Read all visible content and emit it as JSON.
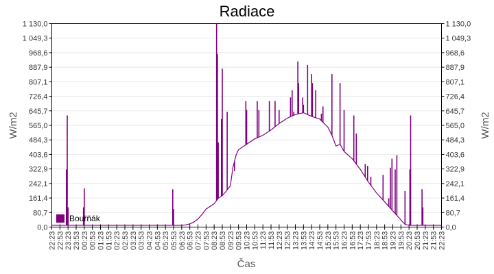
{
  "chart_data": {
    "type": "line",
    "title": "Radiace",
    "xlabel": "Čas",
    "ylabel": "W/m2",
    "ylabel_right": "W/m2",
    "ylim": [
      0,
      1130
    ],
    "y_ticks": [
      "0,0",
      "80,7",
      "161,4",
      "242,1",
      "322,9",
      "403,6",
      "484,3",
      "565,0",
      "645,7",
      "726,4",
      "807,1",
      "887,9",
      "968,6",
      "1 049,3",
      "1 130,0"
    ],
    "x_ticks": [
      "22:23",
      "22:53",
      "23:23",
      "23:53",
      "00:23",
      "00:53",
      "01:23",
      "01:53",
      "02:23",
      "02:53",
      "03:23",
      "03:53",
      "04:23",
      "04:53",
      "05:23",
      "05:53",
      "06:23",
      "06:53",
      "07:23",
      "07:53",
      "08:23",
      "08:53",
      "09:23",
      "09:53",
      "10:23",
      "10:53",
      "11:23",
      "11:53",
      "12:23",
      "12:53",
      "13:23",
      "13:53",
      "14:23",
      "14:53",
      "15:23",
      "15:53",
      "16:23",
      "16:53",
      "17:23",
      "17:53",
      "18:23",
      "18:53",
      "19:23",
      "19:53",
      "20:23",
      "20:53",
      "21:23",
      "21:53",
      "22:23"
    ],
    "grid": true,
    "legend_position": "bottom-left-inside",
    "series": [
      {
        "name": "Bouřňák",
        "color": "#800080",
        "baseline_points": [
          [
            0,
            10
          ],
          [
            2,
            10
          ],
          [
            4,
            10
          ],
          [
            8,
            10
          ],
          [
            14,
            10
          ],
          [
            15,
            10
          ],
          [
            16,
            10
          ],
          [
            16.5,
            12
          ],
          [
            17,
            18
          ],
          [
            17.5,
            28
          ],
          [
            18,
            45
          ],
          [
            18.5,
            70
          ],
          [
            19,
            100
          ],
          [
            19.5,
            115
          ],
          [
            20,
            130
          ],
          [
            20.5,
            160
          ],
          [
            21,
            175
          ],
          [
            21.5,
            200
          ],
          [
            22,
            230
          ],
          [
            22.3,
            330
          ],
          [
            22.7,
            400
          ],
          [
            23,
            430
          ],
          [
            24,
            460
          ],
          [
            25,
            490
          ],
          [
            26,
            510
          ],
          [
            27,
            540
          ],
          [
            28,
            575
          ],
          [
            29,
            605
          ],
          [
            30,
            625
          ],
          [
            31,
            635
          ],
          [
            32,
            615
          ],
          [
            33,
            600
          ],
          [
            34,
            555
          ],
          [
            34.5,
            510
          ],
          [
            35,
            450
          ],
          [
            35.5,
            460
          ],
          [
            36,
            420
          ],
          [
            37,
            380
          ],
          [
            38,
            320
          ],
          [
            39,
            250
          ],
          [
            40,
            190
          ],
          [
            41,
            140
          ],
          [
            42,
            90
          ],
          [
            43,
            40
          ],
          [
            43.5,
            15
          ],
          [
            44,
            10
          ],
          [
            46,
            10
          ],
          [
            48,
            10
          ]
        ],
        "spikes": [
          [
            1.8,
            320
          ],
          [
            1.9,
            620
          ],
          [
            2.0,
            110
          ],
          [
            3.9,
            110
          ],
          [
            4.0,
            215
          ],
          [
            14.9,
            210
          ],
          [
            15.0,
            100
          ],
          [
            20.3,
            1130
          ],
          [
            20.4,
            960
          ],
          [
            20.5,
            470
          ],
          [
            20.9,
            600
          ],
          [
            21.0,
            880
          ],
          [
            21.6,
            640
          ],
          [
            22.5,
            310
          ],
          [
            23.9,
            700
          ],
          [
            24.0,
            650
          ],
          [
            25.3,
            700
          ],
          [
            25.5,
            650
          ],
          [
            26.8,
            700
          ],
          [
            27.5,
            700
          ],
          [
            28.0,
            650
          ],
          [
            29.4,
            720
          ],
          [
            29.6,
            760
          ],
          [
            29.8,
            640
          ],
          [
            30.3,
            920
          ],
          [
            30.4,
            800
          ],
          [
            30.9,
            720
          ],
          [
            31.0,
            680
          ],
          [
            31.5,
            900
          ],
          [
            32.0,
            850
          ],
          [
            32.1,
            800
          ],
          [
            32.5,
            760
          ],
          [
            33.2,
            630
          ],
          [
            33.4,
            670
          ],
          [
            34.5,
            850
          ],
          [
            35.5,
            800
          ],
          [
            36.0,
            650
          ],
          [
            37.2,
            620
          ],
          [
            37.5,
            520
          ],
          [
            38.6,
            350
          ],
          [
            38.9,
            340
          ],
          [
            39.3,
            280
          ],
          [
            40.8,
            290
          ],
          [
            41.5,
            160
          ],
          [
            41.7,
            330
          ],
          [
            41.9,
            380
          ],
          [
            42.3,
            320
          ],
          [
            42.5,
            400
          ],
          [
            43.5,
            200
          ],
          [
            44.2,
            620
          ],
          [
            44.1,
            320
          ],
          [
            45.6,
            210
          ],
          [
            45.7,
            110
          ]
        ]
      }
    ]
  },
  "legend": {
    "label": "Bouřňák",
    "color": "#800080"
  }
}
